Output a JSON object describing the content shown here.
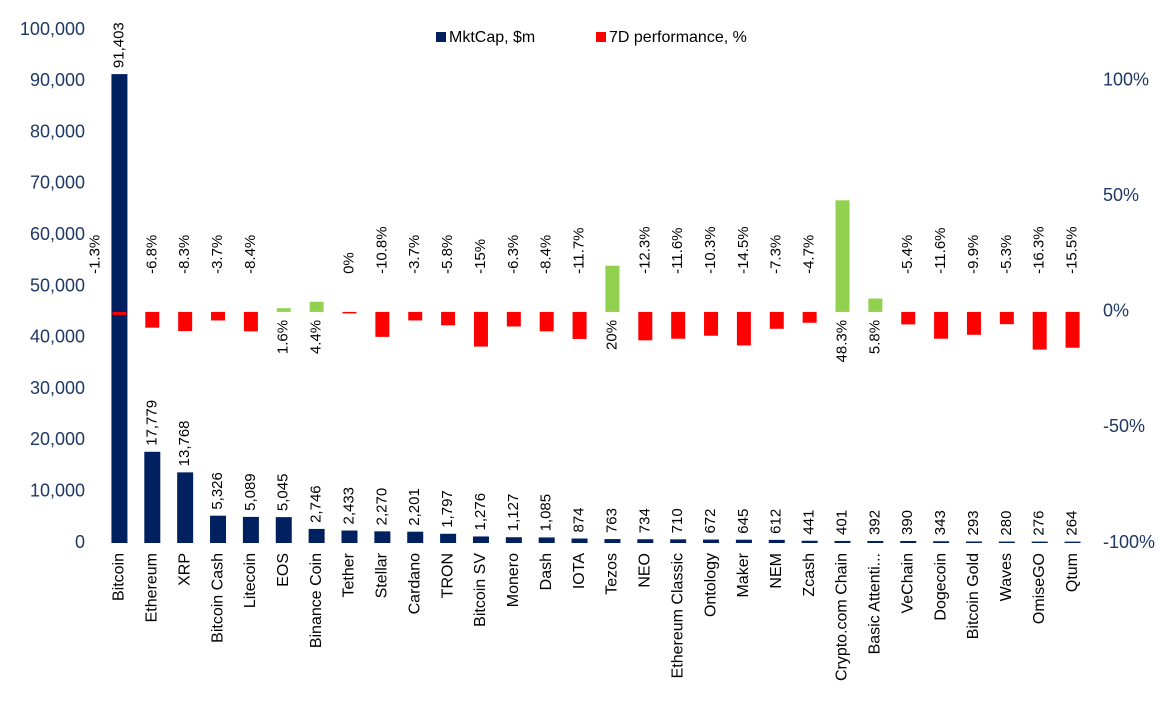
{
  "chart_data": {
    "type": "bar",
    "categories": [
      "Bitcoin",
      "Ethereum",
      "XRP",
      "Bitcoin Cash",
      "Litecoin",
      "EOS",
      "Binance Coin",
      "Tether",
      "Stellar",
      "Cardano",
      "TRON",
      "Bitcoin SV",
      "Monero",
      "Dash",
      "IOTA",
      "Tezos",
      "NEO",
      "Ethereum Classic",
      "Ontology",
      "Maker",
      "NEM",
      "Zcash",
      "Crypto.com Chain",
      "Basic Attenti...",
      "VeChain",
      "Dogecoin",
      "Bitcoin Gold",
      "Waves",
      "OmiseGO",
      "Qtum"
    ],
    "series": [
      {
        "name": "MktCap, $m",
        "color": "#002060",
        "values": [
          91403,
          17779,
          13768,
          5326,
          5089,
          5045,
          2746,
          2433,
          2270,
          2201,
          1797,
          1276,
          1127,
          1085,
          874,
          763,
          734,
          710,
          672,
          645,
          612,
          441,
          401,
          392,
          390,
          343,
          293,
          280,
          276,
          264
        ],
        "value_labels": [
          "91,403",
          "17,779",
          "13,768",
          "5,326",
          "5,089",
          "5,045",
          "2,746",
          "2,433",
          "2,270",
          "2,201",
          "1,797",
          "1,276",
          "1,127",
          "1,085",
          "874",
          "763",
          "734",
          "710",
          "672",
          "645",
          "612",
          "441",
          "401",
          "392",
          "390",
          "343",
          "293",
          "280",
          "276",
          "264"
        ]
      },
      {
        "name": "7D performance, %",
        "color": "#ff0000",
        "positive_color": "#92d050",
        "axis": "y2",
        "values": [
          -1.3,
          -6.8,
          -8.3,
          -3.7,
          -8.4,
          1.6,
          4.4,
          0,
          -10.8,
          -3.7,
          -5.8,
          -15,
          -6.3,
          -8.4,
          -11.7,
          20,
          -12.3,
          -11.6,
          -10.3,
          -14.5,
          -7.3,
          -4.7,
          48.3,
          5.8,
          -5.4,
          -11.6,
          -9.9,
          -5.3,
          -16.3,
          -15.5
        ],
        "value_labels": [
          "-1.3%",
          "-6.8%",
          "-8.3%",
          "-3.7%",
          "-8.4%",
          "1.6%",
          "4.4%",
          "0%",
          "-10.8%",
          "-3.7%",
          "-5.8%",
          "-15%",
          "-6.3%",
          "-8.4%",
          "-11.7%",
          "20%",
          "-12.3%",
          "-11.6%",
          "-10.3%",
          "-14.5%",
          "-7.3%",
          "-4.7%",
          "48.3%",
          "5.8%",
          "-5.4%",
          "-11.6%",
          "-9.9%",
          "-5.3%",
          "-16.3%",
          "-15.5%"
        ]
      }
    ],
    "ylim": [
      0,
      100000
    ],
    "yticks": [
      0,
      {
        "value": 10000,
        "label": "10,000"
      },
      {
        "value": 20000,
        "label": "20,000"
      },
      {
        "value": 30000,
        "label": "30,000"
      },
      {
        "value": 40000,
        "label": "40,000"
      },
      {
        "value": 50000,
        "label": "50,000"
      },
      {
        "value": 60000,
        "label": "60,000"
      },
      {
        "value": 70000,
        "label": "70,000"
      },
      {
        "value": 80000,
        "label": "80,000"
      },
      {
        "value": 90000,
        "label": "90,000"
      },
      {
        "value": 100000,
        "label": "100,000"
      }
    ],
    "y2lim": [
      -100,
      122
    ],
    "y2ticks": [
      {
        "value": -100,
        "label": "-100%"
      },
      {
        "value": -50,
        "label": "-50%"
      },
      {
        "value": 0,
        "label": "0%"
      },
      {
        "value": 50,
        "label": "50%"
      },
      {
        "value": 100,
        "label": "100%"
      }
    ],
    "legend": "top",
    "grid": false
  }
}
